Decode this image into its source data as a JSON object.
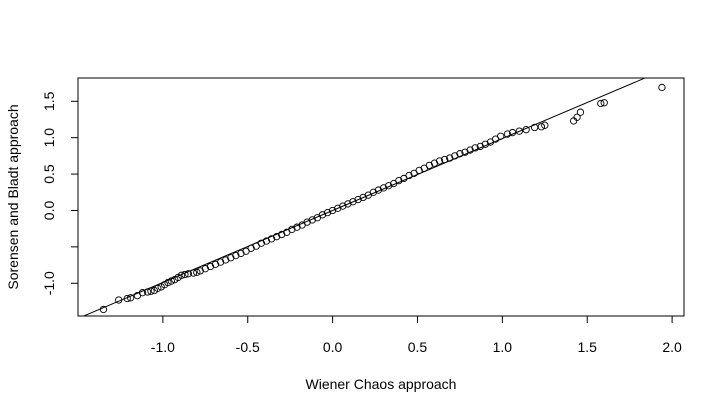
{
  "chart_data": {
    "type": "scatter",
    "title": "",
    "xlabel": "Wiener Chaos approach",
    "ylabel": "Sorensen and Bladt approach",
    "xlim": [
      -1.5,
      2.07
    ],
    "ylim": [
      -1.45,
      1.82
    ],
    "x_ticks": [
      {
        "value": -1.0,
        "label": "-1.0"
      },
      {
        "value": -0.5,
        "label": "-0.5"
      },
      {
        "value": 0.0,
        "label": "0.0"
      },
      {
        "value": 0.5,
        "label": "0.5"
      },
      {
        "value": 1.0,
        "label": "1.0"
      },
      {
        "value": 1.5,
        "label": "1.5"
      },
      {
        "value": 2.0,
        "label": "2.0"
      }
    ],
    "y_ticks": [
      {
        "value": -1.0,
        "label": "-1.0"
      },
      {
        "value": -0.5,
        "label": ""
      },
      {
        "value": 0.0,
        "label": "0.0"
      },
      {
        "value": 0.5,
        "label": "0.5"
      },
      {
        "value": 1.0,
        "label": "1.0"
      },
      {
        "value": 1.5,
        "label": "1.5"
      }
    ],
    "reference_line": {
      "intercept": 0.0,
      "slope": 0.989
    },
    "grid": false,
    "legend": "none",
    "marker": "open-circle",
    "color": "#000000",
    "series": [
      {
        "points": [
          [
            -1.35,
            -1.36
          ],
          [
            -1.26,
            -1.23
          ],
          [
            -1.21,
            -1.21
          ],
          [
            -1.19,
            -1.2
          ],
          [
            -1.15,
            -1.17
          ],
          [
            -1.12,
            -1.13
          ],
          [
            -1.09,
            -1.12
          ],
          [
            -1.07,
            -1.11
          ],
          [
            -1.05,
            -1.1
          ],
          [
            -1.03,
            -1.07
          ],
          [
            -1.01,
            -1.05
          ],
          [
            -0.99,
            -1.02
          ],
          [
            -0.97,
            -0.99
          ],
          [
            -0.95,
            -0.97
          ],
          [
            -0.93,
            -0.95
          ],
          [
            -0.91,
            -0.92
          ],
          [
            -0.89,
            -0.89
          ],
          [
            -0.87,
            -0.88
          ],
          [
            -0.85,
            -0.87
          ],
          [
            -0.82,
            -0.86
          ],
          [
            -0.8,
            -0.85
          ],
          [
            -0.78,
            -0.83
          ],
          [
            -0.75,
            -0.8
          ],
          [
            -0.72,
            -0.77
          ],
          [
            -0.69,
            -0.74
          ],
          [
            -0.66,
            -0.71
          ],
          [
            -0.63,
            -0.68
          ],
          [
            -0.6,
            -0.65
          ],
          [
            -0.57,
            -0.62
          ],
          [
            -0.54,
            -0.59
          ],
          [
            -0.51,
            -0.56
          ],
          [
            -0.48,
            -0.52
          ],
          [
            -0.45,
            -0.49
          ],
          [
            -0.42,
            -0.45
          ],
          [
            -0.39,
            -0.42
          ],
          [
            -0.36,
            -0.39
          ],
          [
            -0.33,
            -0.36
          ],
          [
            -0.3,
            -0.33
          ],
          [
            -0.27,
            -0.3
          ],
          [
            -0.24,
            -0.26
          ],
          [
            -0.21,
            -0.23
          ],
          [
            -0.18,
            -0.2
          ],
          [
            -0.15,
            -0.16
          ],
          [
            -0.12,
            -0.13
          ],
          [
            -0.09,
            -0.1
          ],
          [
            -0.06,
            -0.06
          ],
          [
            -0.03,
            -0.03
          ],
          [
            0.0,
            0.0
          ],
          [
            0.03,
            0.03
          ],
          [
            0.06,
            0.06
          ],
          [
            0.09,
            0.09
          ],
          [
            0.12,
            0.12
          ],
          [
            0.15,
            0.15
          ],
          [
            0.18,
            0.18
          ],
          [
            0.21,
            0.21
          ],
          [
            0.24,
            0.25
          ],
          [
            0.27,
            0.28
          ],
          [
            0.3,
            0.31
          ],
          [
            0.33,
            0.34
          ],
          [
            0.36,
            0.37
          ],
          [
            0.39,
            0.41
          ],
          [
            0.42,
            0.44
          ],
          [
            0.45,
            0.48
          ],
          [
            0.48,
            0.51
          ],
          [
            0.51,
            0.55
          ],
          [
            0.54,
            0.58
          ],
          [
            0.57,
            0.62
          ],
          [
            0.6,
            0.65
          ],
          [
            0.63,
            0.68
          ],
          [
            0.66,
            0.7
          ],
          [
            0.69,
            0.72
          ],
          [
            0.72,
            0.75
          ],
          [
            0.75,
            0.78
          ],
          [
            0.78,
            0.8
          ],
          [
            0.81,
            0.83
          ],
          [
            0.84,
            0.86
          ],
          [
            0.87,
            0.88
          ],
          [
            0.9,
            0.91
          ],
          [
            0.93,
            0.94
          ],
          [
            0.96,
            0.98
          ],
          [
            0.99,
            1.02
          ],
          [
            1.03,
            1.05
          ],
          [
            1.06,
            1.07
          ],
          [
            1.1,
            1.09
          ],
          [
            1.14,
            1.11
          ],
          [
            1.19,
            1.14
          ],
          [
            1.23,
            1.15
          ],
          [
            1.25,
            1.17
          ],
          [
            1.42,
            1.23
          ],
          [
            1.44,
            1.28
          ],
          [
            1.46,
            1.35
          ],
          [
            1.58,
            1.47
          ],
          [
            1.6,
            1.48
          ],
          [
            1.94,
            1.69
          ]
        ]
      }
    ]
  }
}
